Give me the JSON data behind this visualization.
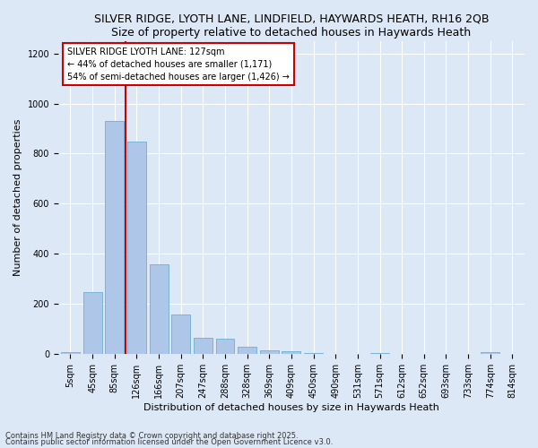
{
  "title": "SILVER RIDGE, LYOTH LANE, LINDFIELD, HAYWARDS HEATH, RH16 2QB",
  "subtitle": "Size of property relative to detached houses in Haywards Heath",
  "xlabel": "Distribution of detached houses by size in Haywards Heath",
  "ylabel": "Number of detached properties",
  "categories": [
    "5sqm",
    "45sqm",
    "85sqm",
    "126sqm",
    "166sqm",
    "207sqm",
    "247sqm",
    "288sqm",
    "328sqm",
    "369sqm",
    "409sqm",
    "450sqm",
    "490sqm",
    "531sqm",
    "571sqm",
    "612sqm",
    "652sqm",
    "693sqm",
    "733sqm",
    "774sqm",
    "814sqm"
  ],
  "values": [
    8,
    247,
    930,
    848,
    358,
    157,
    65,
    63,
    30,
    15,
    12,
    5,
    0,
    0,
    5,
    0,
    0,
    0,
    0,
    8,
    0
  ],
  "bar_color": "#aec6e8",
  "bar_edge_color": "#6baed6",
  "ylim": [
    0,
    1250
  ],
  "yticks": [
    0,
    200,
    400,
    600,
    800,
    1000,
    1200
  ],
  "property_line_x": 2.5,
  "annotation_line1": "SILVER RIDGE LYOTH LANE: 127sqm",
  "annotation_line2": "← 44% of detached houses are smaller (1,171)",
  "annotation_line3": "54% of semi-detached houses are larger (1,426) →",
  "annotation_box_color": "#ffffff",
  "annotation_box_edge": "#cc0000",
  "line_color": "#cc0000",
  "bg_color": "#dce8f5",
  "grid_color": "#ffffff",
  "title_fontsize": 9,
  "subtitle_fontsize": 8,
  "ylabel_fontsize": 8,
  "xlabel_fontsize": 8,
  "tick_fontsize": 7,
  "annot_fontsize": 7,
  "footer1": "Contains HM Land Registry data © Crown copyright and database right 2025.",
  "footer2": "Contains public sector information licensed under the Open Government Licence v3.0.",
  "footer_fontsize": 6
}
